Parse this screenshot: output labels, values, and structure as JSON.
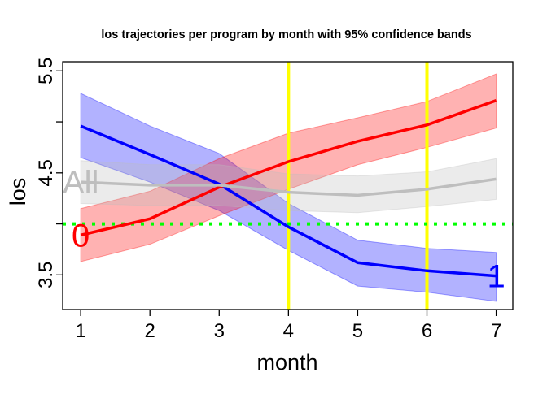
{
  "chart_data": {
    "type": "line",
    "title": "los trajectories per program by month with 95% confidence bands",
    "xlabel": "month",
    "ylabel": "los",
    "x": [
      1,
      2,
      3,
      4,
      5,
      6,
      7
    ],
    "xticks": [
      "1",
      "2",
      "3",
      "4",
      "5",
      "6",
      "7"
    ],
    "yticks": [
      3.5,
      4.5,
      5.5
    ],
    "yticklabels": [
      "3.5",
      "4.5",
      "5.5"
    ],
    "yminor_ticks": [
      4.0,
      5.0
    ],
    "xlim": [
      0.74,
      7.24
    ],
    "ylim": [
      3.16,
      5.59
    ],
    "grid": false,
    "series": [
      {
        "name": "0",
        "color": "#ff0000",
        "band_color": "#ff0000",
        "values": [
          3.89,
          4.05,
          4.36,
          4.61,
          4.81,
          4.97,
          5.21
        ],
        "upper": [
          4.15,
          4.32,
          4.64,
          4.89,
          5.04,
          5.2,
          5.47
        ],
        "lower": [
          3.63,
          3.8,
          4.08,
          4.34,
          4.58,
          4.75,
          4.94
        ],
        "label_position": "start"
      },
      {
        "name": "1",
        "color": "#0000ff",
        "band_color": "#0000ff",
        "values": [
          4.96,
          4.68,
          4.39,
          3.97,
          3.62,
          3.54,
          3.49
        ],
        "upper": [
          5.28,
          4.96,
          4.69,
          4.2,
          3.84,
          3.76,
          3.72
        ],
        "lower": [
          4.65,
          4.41,
          4.13,
          3.74,
          3.39,
          3.33,
          3.24
        ],
        "label_position": "end"
      },
      {
        "name": "All",
        "color": "#bebebe",
        "band_color": "#bebebe",
        "values": [
          4.41,
          4.38,
          4.38,
          4.31,
          4.28,
          4.34,
          4.44
        ],
        "upper": [
          4.62,
          4.58,
          4.58,
          4.49,
          4.47,
          4.51,
          4.64
        ],
        "lower": [
          4.2,
          4.18,
          4.18,
          4.13,
          4.11,
          4.17,
          4.24
        ],
        "label_position": "start"
      }
    ],
    "reference_lines": {
      "vertical": [
        {
          "x": 4,
          "color": "#ffff00"
        },
        {
          "x": 6,
          "color": "#ffff00"
        }
      ],
      "horizontal": [
        {
          "y": 4.0,
          "color": "#00ff00",
          "style": "dotted"
        }
      ]
    }
  }
}
